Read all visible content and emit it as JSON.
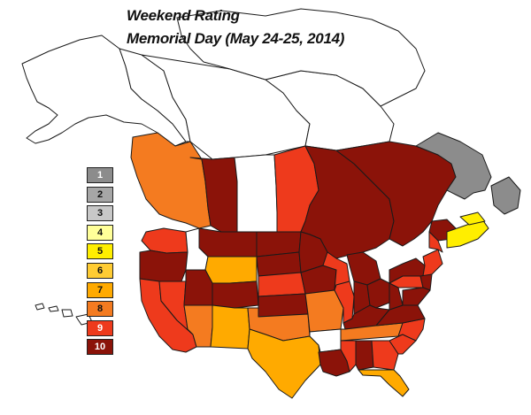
{
  "title": {
    "line1": "Weekend Rating",
    "line2": "Memorial Day (May 24-25, 2014)"
  },
  "legend": [
    {
      "label": "1",
      "color": "#8c8c8c"
    },
    {
      "label": "2",
      "color": "#a6a6a6"
    },
    {
      "label": "3",
      "color": "#c8c8c8"
    },
    {
      "label": "4",
      "color": "#ffff99"
    },
    {
      "label": "5",
      "color": "#ffee00"
    },
    {
      "label": "6",
      "color": "#ffcc33"
    },
    {
      "label": "7",
      "color": "#ffaa00"
    },
    {
      "label": "8",
      "color": "#f47b20"
    },
    {
      "label": "9",
      "color": "#ee3a1c"
    },
    {
      "label": "10",
      "color": "#8b1309"
    }
  ],
  "regions": {
    "alaska": 0,
    "yukon": 0,
    "nwt": 0,
    "nunavut": 0,
    "arctic_islands": 0,
    "british_columbia": 8,
    "alberta": 10,
    "saskatchewan": 0,
    "manitoba": 9,
    "ontario": 10,
    "quebec": 10,
    "newfoundland_labrador": 1,
    "new_brunswick": 10,
    "nova_scotia": 5,
    "pei": 5,
    "washington": 9,
    "oregon": 10,
    "california": 9,
    "nevada": 9,
    "idaho": 0,
    "montana": 10,
    "wyoming": 7,
    "utah": 10,
    "colorado": 10,
    "arizona": 8,
    "new_mexico": 7,
    "north_dakota": 10,
    "south_dakota": 10,
    "nebraska": 9,
    "kansas": 10,
    "oklahoma": 8,
    "texas": 7,
    "minnesota": 10,
    "iowa": 10,
    "missouri": 8,
    "arkansas": 0,
    "louisiana": 10,
    "wisconsin": 9,
    "illinois": 9,
    "michigan": 10,
    "indiana": 10,
    "ohio": 10,
    "kentucky": 10,
    "tennessee": 8,
    "mississippi": 9,
    "alabama": 10,
    "georgia": 9,
    "florida": 7,
    "south_carolina": 9,
    "north_carolina": 9,
    "virginia": 10,
    "west_virginia": 10,
    "pennsylvania": 9,
    "new_york": 10,
    "new_england": 9,
    "maine": 9,
    "new_jersey": 10,
    "maryland": 10,
    "hawaii": 0
  }
}
